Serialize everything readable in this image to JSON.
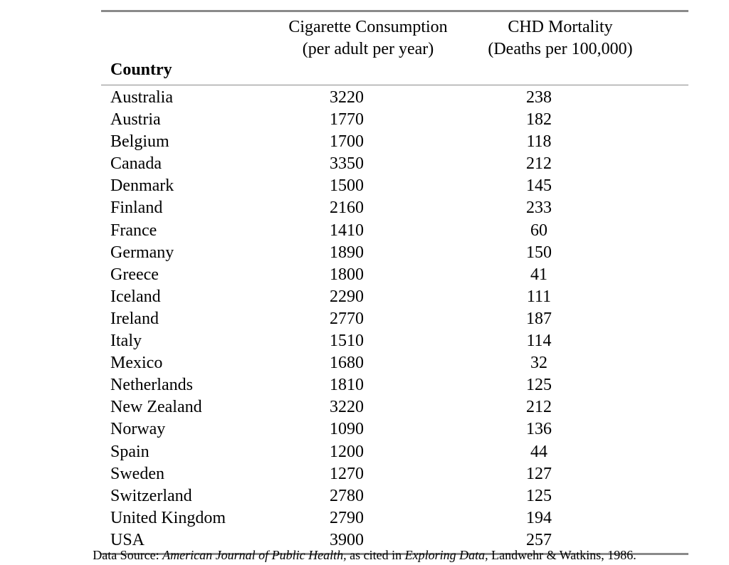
{
  "table": {
    "headers": {
      "country": "Country",
      "cigarette_line1": "Cigarette Consumption",
      "cigarette_line2": "(per adult per year)",
      "chd_line1": "CHD Mortality",
      "chd_line2": "(Deaths per 100,000)"
    },
    "rows": [
      {
        "country": "Australia",
        "cigarettes": "3220",
        "chd": "238"
      },
      {
        "country": "Austria",
        "cigarettes": "1770",
        "chd": "182"
      },
      {
        "country": "Belgium",
        "cigarettes": "1700",
        "chd": "118"
      },
      {
        "country": "Canada",
        "cigarettes": "3350",
        "chd": "212"
      },
      {
        "country": "Denmark",
        "cigarettes": "1500",
        "chd": "145"
      },
      {
        "country": "Finland",
        "cigarettes": "2160",
        "chd": "233"
      },
      {
        "country": "France",
        "cigarettes": "1410",
        "chd": "60"
      },
      {
        "country": "Germany",
        "cigarettes": "1890",
        "chd": "150"
      },
      {
        "country": "Greece",
        "cigarettes": "1800",
        "chd": "41"
      },
      {
        "country": "Iceland",
        "cigarettes": "2290",
        "chd": "111"
      },
      {
        "country": "Ireland",
        "cigarettes": "2770",
        "chd": "187"
      },
      {
        "country": "Italy",
        "cigarettes": "1510",
        "chd": "114"
      },
      {
        "country": "Mexico",
        "cigarettes": "1680",
        "chd": "32"
      },
      {
        "country": "Netherlands",
        "cigarettes": "1810",
        "chd": "125"
      },
      {
        "country": "New Zealand",
        "cigarettes": "3220",
        "chd": "212"
      },
      {
        "country": "Norway",
        "cigarettes": "1090",
        "chd": "136"
      },
      {
        "country": "Spain",
        "cigarettes": "1200",
        "chd": "44"
      },
      {
        "country": "Sweden",
        "cigarettes": "1270",
        "chd": "127"
      },
      {
        "country": "Switzerland",
        "cigarettes": "2780",
        "chd": "125"
      },
      {
        "country": "United Kingdom",
        "cigarettes": "2790",
        "chd": "194"
      },
      {
        "country": "USA",
        "cigarettes": "3900",
        "chd": "257"
      }
    ]
  },
  "source": {
    "prefix": "Data Source: ",
    "journal": "American Journal of Public Health,",
    "middle": " as cited in ",
    "book": "Exploring Data,",
    "suffix": " Landwehr & Watkins, 1986."
  },
  "colors": {
    "rule": "#8a8a8a",
    "text": "#000000",
    "background": "#ffffff"
  }
}
